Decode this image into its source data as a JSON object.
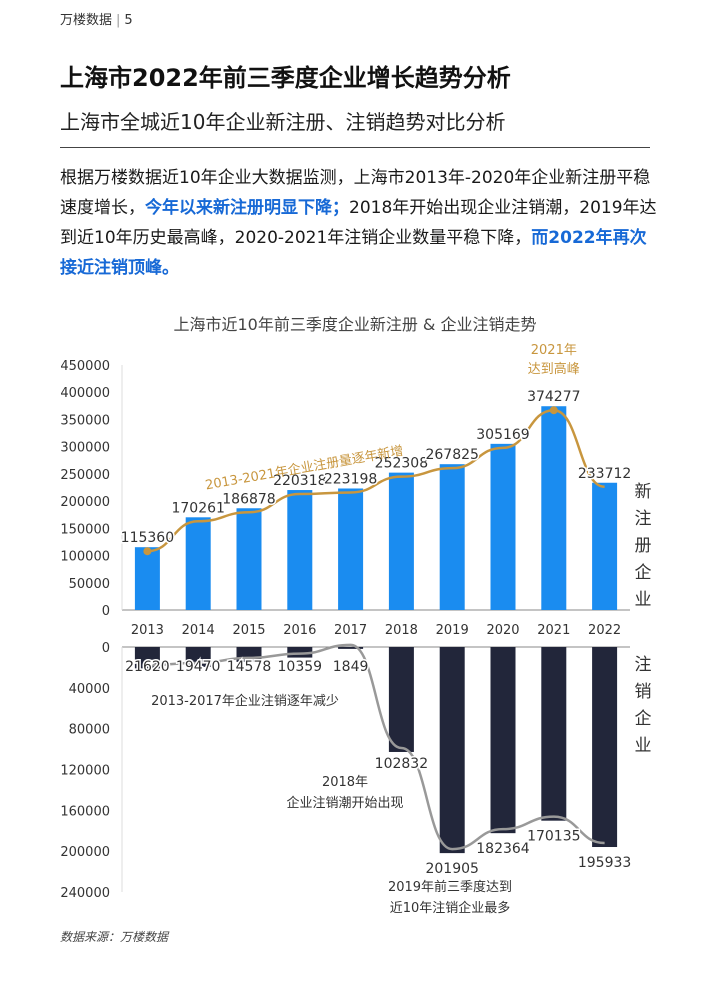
{
  "header": {
    "brand": "万楼数据",
    "page_number": "5"
  },
  "title": "上海市2022年前三季度企业增长趋势分析",
  "subtitle": "上海市全城近10年企业新注册、注销趋势对比分析",
  "paragraph": {
    "part1": "根据万楼数据近10年企业大数据监测，上海市2013年-2020年企业新注册平稳速度增长，",
    "highlight1": "今年以来新注册明显下降；",
    "part2": "2018年开始出现企业注销潮，2019年达到近10年历史最高峰，2020-2021年注销企业数量平稳下降，",
    "highlight2": "而2022年再次接近注销顶峰。"
  },
  "source": "数据来源：万楼数据",
  "chart_data": {
    "type": "bar",
    "title": "上海市近10年前三季度企业新注册 & 企业注销走势",
    "categories": [
      "2013",
      "2014",
      "2015",
      "2016",
      "2017",
      "2018",
      "2019",
      "2020",
      "2021",
      "2022"
    ],
    "series": [
      {
        "name": "新注册企业",
        "color": "#1a8cf0",
        "values": [
          115360,
          170261,
          186878,
          220318,
          223198,
          252308,
          267825,
          305169,
          374277,
          233712
        ]
      },
      {
        "name": "注销企业",
        "color": "#22263a",
        "values": [
          21620,
          19470,
          14578,
          10359,
          1849,
          102832,
          201905,
          182364,
          170135,
          195933
        ]
      }
    ],
    "top_axis": {
      "ylim": [
        0,
        450000
      ],
      "ticks": [
        "450000",
        "400000",
        "350000",
        "300000",
        "250000",
        "200000",
        "150000",
        "100000",
        "50000",
        "0"
      ]
    },
    "bottom_axis": {
      "ylim": [
        0,
        240000
      ],
      "ticks": [
        "0",
        "40000",
        "80000",
        "120000",
        "160000",
        "200000",
        "240000"
      ]
    },
    "trend_colors": {
      "registration": "#c8963e",
      "cancellation": "#999999"
    },
    "annotations": {
      "trend_2013_2021": "2013-2021年企业注册量逐年新增",
      "peak_2021_line1": "2021年",
      "peak_2021_line2": "达到高峰",
      "decline_2013_2017": "2013-2017年企业注销逐年减少",
      "wave_2018_line1": "2018年",
      "wave_2018_line2": "企业注销潮开始出现",
      "peak_2019_line1": "2019年前三季度达到",
      "peak_2019_line2": "近10年注销企业最多"
    },
    "side_labels": {
      "registration": [
        "新",
        "注",
        "册",
        "企",
        "业"
      ],
      "cancellation": [
        "注",
        "销",
        "企",
        "业"
      ]
    }
  }
}
